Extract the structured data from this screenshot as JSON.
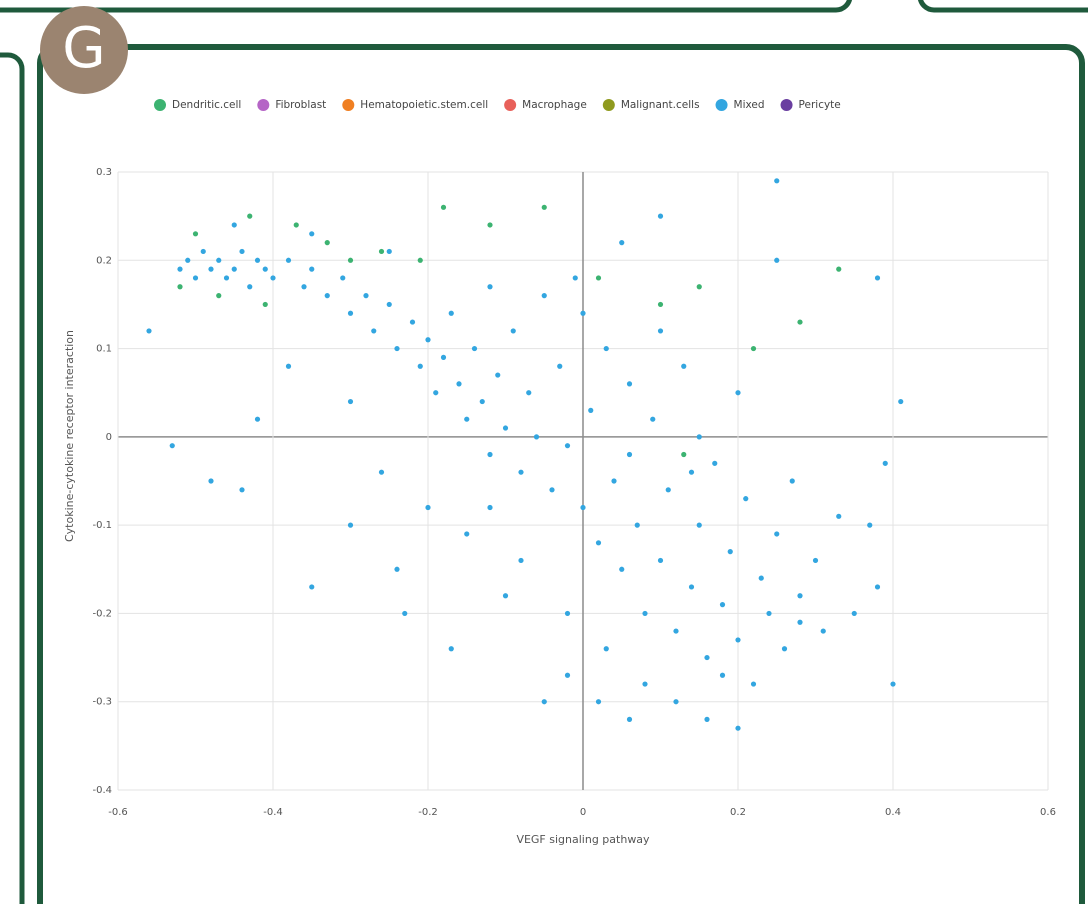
{
  "panel_label": "G",
  "chart_data": {
    "type": "scatter",
    "x_label": "VEGF signaling pathway",
    "y_label": "Cytokine-cytokine receptor interaction",
    "xlim": [
      -0.6,
      0.6
    ],
    "xticks": [
      -0.6,
      -0.4,
      -0.2,
      0,
      0.2,
      0.4,
      0.6
    ],
    "ylim": [
      -0.4,
      0.3
    ],
    "yticks": [
      -0.4,
      -0.3,
      -0.2,
      -0.1,
      0,
      0.1,
      0.2,
      0.3
    ],
    "grid": true,
    "legend": "top",
    "series": [
      {
        "name": "Dendritic.cell",
        "color": "#3cb371",
        "x": [
          -0.52,
          -0.5,
          -0.47,
          -0.43,
          -0.41,
          -0.37,
          -0.33,
          -0.3,
          -0.26,
          -0.21,
          -0.18,
          -0.12,
          -0.05,
          0.02,
          0.1,
          0.15,
          0.28,
          0.33,
          0.13,
          0.22
        ],
        "values": [
          0.17,
          0.23,
          0.16,
          0.25,
          0.15,
          0.24,
          0.22,
          0.2,
          0.21,
          0.2,
          0.26,
          0.24,
          0.26,
          0.18,
          0.15,
          0.17,
          0.13,
          0.19,
          -0.02,
          0.1
        ]
      },
      {
        "name": "Fibroblast",
        "color": "#b565c6",
        "x": [],
        "values": []
      },
      {
        "name": "Hematopoietic.stem.cell",
        "color": "#f07f22",
        "x": [],
        "values": []
      },
      {
        "name": "Macrophage",
        "color": "#e8605a",
        "x": [],
        "values": []
      },
      {
        "name": "Malignant.cells",
        "color": "#8f9a1e",
        "x": [],
        "values": []
      },
      {
        "name": "Mixed",
        "color": "#33a6e0",
        "x": [
          -0.52,
          -0.51,
          -0.5,
          -0.49,
          -0.48,
          -0.47,
          -0.46,
          -0.45,
          -0.44,
          -0.43,
          -0.42,
          -0.41,
          -0.4,
          -0.38,
          -0.36,
          -0.35,
          -0.33,
          -0.31,
          -0.3,
          -0.28,
          -0.27,
          -0.25,
          -0.24,
          -0.22,
          -0.21,
          -0.2,
          -0.19,
          -0.18,
          -0.17,
          -0.16,
          -0.15,
          -0.14,
          -0.13,
          -0.12,
          -0.11,
          -0.1,
          -0.09,
          -0.08,
          -0.07,
          -0.06,
          -0.05,
          -0.04,
          -0.03,
          -0.02,
          -0.01,
          0,
          0.01,
          0.02,
          0.03,
          0.04,
          0.05,
          0.06,
          0.07,
          0.08,
          0.09,
          0.1,
          0.11,
          0.12,
          0.13,
          0.14,
          0.15,
          0.16,
          0.17,
          0.18,
          0.19,
          0.2,
          0.21,
          0.22,
          0.23,
          0.24,
          0.25,
          0.26,
          0.27,
          0.28,
          0.3,
          0.31,
          0.33,
          0.35,
          0.37,
          0.38,
          0.39,
          0.4,
          0.41,
          0.38,
          0.25,
          0.25,
          -0.56,
          -0.53,
          -0.48,
          -0.44,
          -0.35,
          -0.3,
          -0.24,
          -0.23,
          -0.17,
          -0.1,
          -0.05,
          -0.02,
          0.02,
          0.06,
          0.16,
          0.2,
          0,
          0.05,
          0.1,
          -0.3,
          -0.38,
          -0.42,
          -0.26,
          -0.2,
          -0.15,
          -0.08,
          0.03,
          0.08,
          0.12,
          0.18,
          0.28,
          0.15,
          0.2,
          0.1,
          -0.12,
          -0.25,
          -0.35,
          -0.45,
          -0.02,
          -0.12,
          0.06,
          0.14
        ],
        "values": [
          0.19,
          0.2,
          0.18,
          0.21,
          0.19,
          0.2,
          0.18,
          0.19,
          0.21,
          0.17,
          0.2,
          0.19,
          0.18,
          0.2,
          0.17,
          0.19,
          0.16,
          0.18,
          0.14,
          0.16,
          0.12,
          0.15,
          0.1,
          0.13,
          0.08,
          0.11,
          0.05,
          0.09,
          0.14,
          0.06,
          0.02,
          0.1,
          0.04,
          -0.02,
          0.07,
          0.01,
          0.12,
          -0.04,
          0.05,
          0,
          0.16,
          -0.06,
          0.08,
          -0.01,
          0.18,
          -0.08,
          0.03,
          -0.12,
          0.1,
          -0.05,
          -0.15,
          0.06,
          -0.1,
          -0.2,
          0.02,
          -0.14,
          -0.06,
          -0.22,
          0.08,
          -0.17,
          -0.1,
          -0.25,
          -0.03,
          -0.19,
          -0.13,
          -0.23,
          -0.07,
          -0.28,
          -0.16,
          -0.2,
          -0.11,
          -0.24,
          -0.05,
          -0.18,
          -0.14,
          -0.22,
          -0.09,
          -0.2,
          -0.1,
          -0.17,
          -0.03,
          -0.28,
          0.04,
          0.18,
          0.29,
          0.2,
          0.12,
          -0.01,
          -0.05,
          -0.06,
          -0.17,
          -0.1,
          -0.15,
          -0.2,
          -0.24,
          -0.18,
          -0.3,
          -0.27,
          -0.3,
          -0.32,
          -0.32,
          -0.33,
          0.14,
          0.22,
          0.25,
          0.04,
          0.08,
          0.02,
          -0.04,
          -0.08,
          -0.11,
          -0.14,
          -0.24,
          -0.28,
          -0.3,
          -0.27,
          -0.21,
          0,
          0.05,
          0.12,
          0.17,
          0.21,
          0.23,
          0.24,
          -0.2,
          -0.08,
          -0.02,
          -0.04
        ]
      },
      {
        "name": "Pericyte",
        "color": "#6a3fa0",
        "x": [],
        "values": []
      }
    ]
  }
}
